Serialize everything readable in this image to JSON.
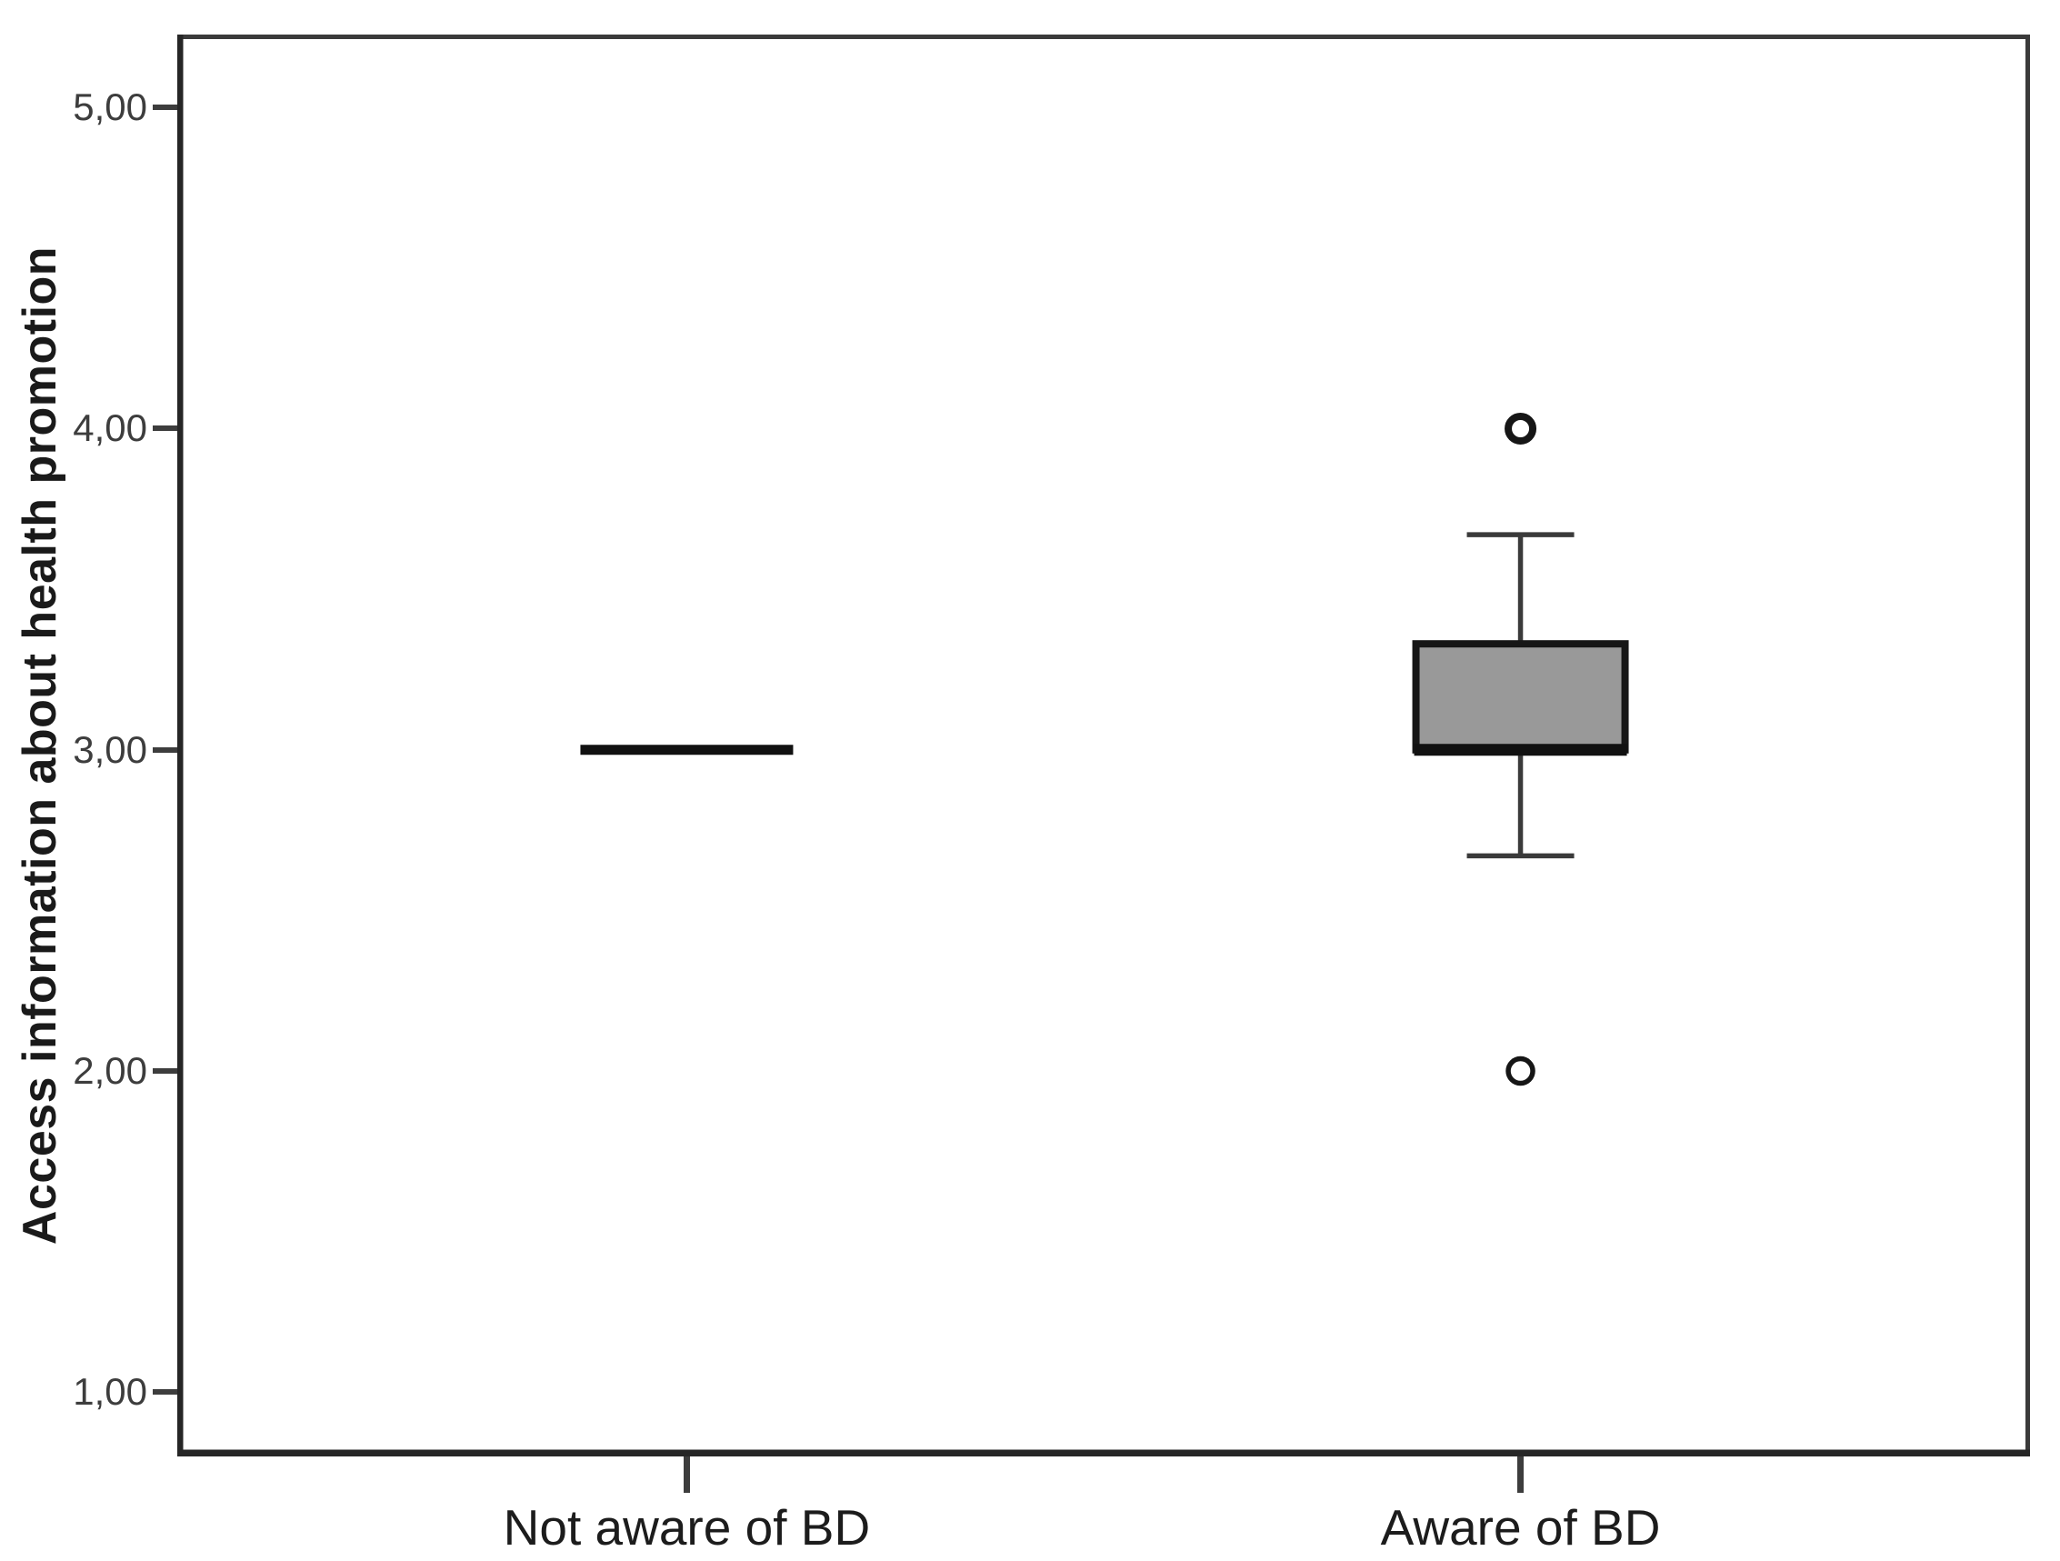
{
  "chart_data": {
    "type": "boxplot",
    "title": "",
    "xlabel": "",
    "ylabel": "Access information about health promotion",
    "y_range": [
      0.8,
      5.227
    ],
    "y_ticks": [
      {
        "value": 5,
        "label": "5,00"
      },
      {
        "value": 4,
        "label": "4,00"
      },
      {
        "value": 3,
        "label": "3,00"
      },
      {
        "value": 2,
        "label": "2,00"
      },
      {
        "value": 1,
        "label": "1,00"
      }
    ],
    "decimal_separator": ",",
    "grid": false,
    "legend": false,
    "categories": [
      "Not aware of BD",
      "Aware of BD"
    ],
    "series": [
      {
        "category": "Not aware of BD",
        "median": 3.0,
        "q1": 3.0,
        "q3": 3.0,
        "whisker_low": 3.0,
        "whisker_high": 3.0,
        "outliers": []
      },
      {
        "category": "Aware of BD",
        "median": 3.0,
        "q1": 3.0,
        "q3": 3.33,
        "whisker_low": 2.67,
        "whisker_high": 3.67,
        "outliers": [
          4.0,
          2.0
        ]
      }
    ],
    "colors": {
      "box_fill": "#999999",
      "box_border": "#161616",
      "median": "#111111",
      "whisker": "#3a3a3a",
      "outlier_stroke": "#161616",
      "frame": "#3a3a3a",
      "axis": "#262626",
      "tick_label": "#3d3d3d",
      "category_label": "#1c1c1c",
      "background": "#ffffff"
    }
  }
}
